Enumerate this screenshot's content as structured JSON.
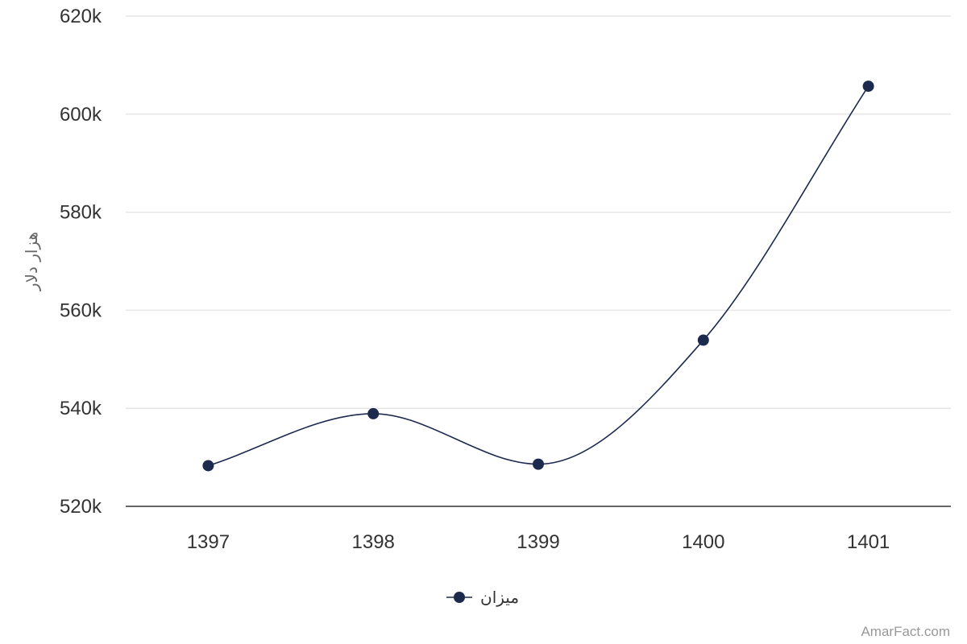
{
  "chart_data": {
    "type": "line",
    "smooth": true,
    "categories": [
      "1397",
      "1398",
      "1399",
      "1400",
      "1401"
    ],
    "series": [
      {
        "name": "میزان",
        "values": [
          528300,
          538900,
          528600,
          553900,
          605700
        ]
      }
    ],
    "ylabel": "هزار دلار",
    "xlabel": "",
    "ylim": [
      520000,
      620000
    ],
    "y_ticks": [
      520000,
      540000,
      560000,
      580000,
      600000,
      620000
    ],
    "y_tick_labels": [
      "520k",
      "540k",
      "560k",
      "580k",
      "600k",
      "620k"
    ],
    "grid": true,
    "legend": "bottom-center",
    "colors": {
      "series": "#1c2a4e",
      "grid": "#e6e6e6",
      "axis": "#333333"
    }
  },
  "credits": "AmarFact.com"
}
